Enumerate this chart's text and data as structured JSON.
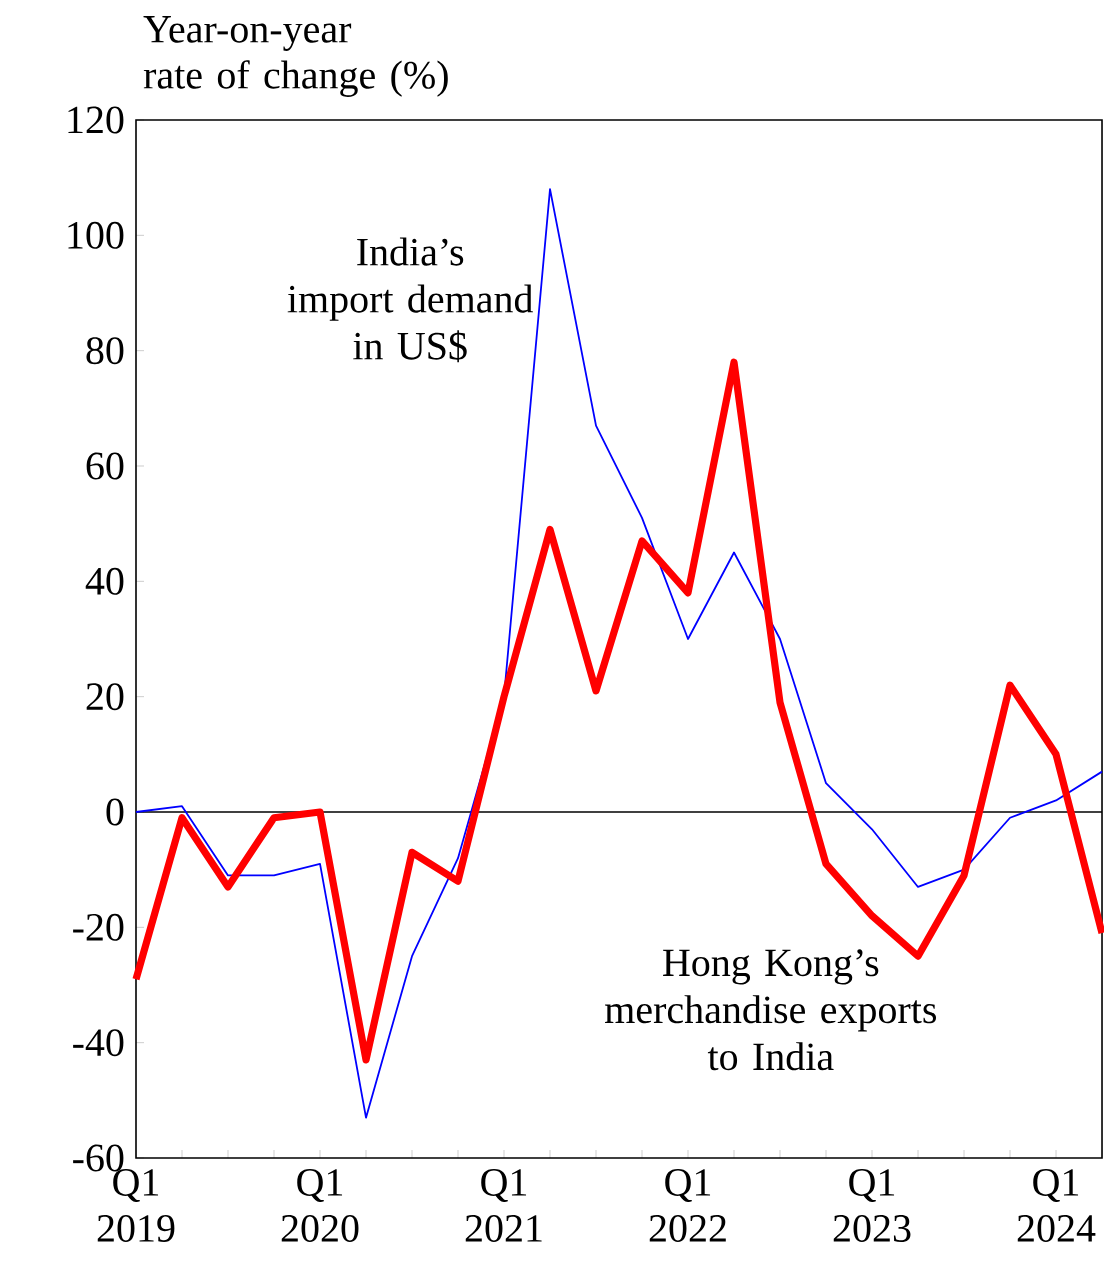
{
  "chart_data": {
    "type": "line",
    "ylabel": "Year-on-year rate of change (%)",
    "categories": [
      "Q1 2019",
      null,
      null,
      null,
      "Q1 2020",
      null,
      null,
      null,
      "Q1 2021",
      null,
      null,
      null,
      "Q1 2022",
      null,
      null,
      null,
      "Q1 2023",
      null,
      null,
      null,
      "Q1 2024",
      null
    ],
    "series": [
      {
        "color": "#0000ff",
        "values": [
          0,
          1,
          -11,
          -11,
          -9,
          -53,
          -25,
          -8,
          20,
          108,
          67,
          51,
          30,
          45,
          30,
          5,
          -3,
          -13,
          -10,
          -1,
          2,
          7
        ]
      },
      {
        "color": "#ff0000",
        "values": [
          -29,
          -1,
          -13,
          -1,
          0,
          -43,
          -7,
          -12,
          20,
          49,
          21,
          47,
          38,
          78,
          19,
          -9,
          -18,
          -25,
          -11,
          22,
          10,
          -21
        ]
      }
    ],
    "ylim": [
      -60,
      120
    ],
    "yticks": [
      -60,
      -40,
      -20,
      0,
      20,
      40,
      60,
      80,
      100,
      120
    ],
    "ref_lines": [
      {
        "axis": "y",
        "value": 0,
        "color": "#000000"
      }
    ],
    "annotations": [
      "India’s import demand in US$",
      "Hong Kong’s merchandise exports to India"
    ],
    "grid": false,
    "marker": "none",
    "line_style": "solid"
  }
}
